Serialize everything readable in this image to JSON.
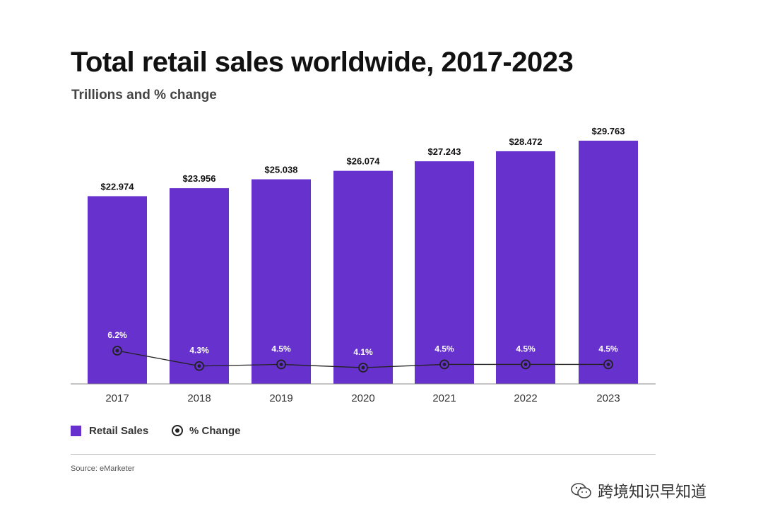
{
  "title": "Total retail sales worldwide, 2017-2023",
  "subtitle": "Trillions and % change",
  "legend": {
    "bars": "Retail Sales",
    "line": "% Change"
  },
  "source": "Source: eMarketer",
  "watermark": "跨境知识早知道",
  "colors": {
    "bar": "#6631cc",
    "line": "#222222",
    "axis": "#888888"
  },
  "chart_data": {
    "type": "bar",
    "title": "Total retail sales worldwide, 2017-2023",
    "subtitle": "Trillions and % change",
    "categories": [
      "2017",
      "2018",
      "2019",
      "2020",
      "2021",
      "2022",
      "2023"
    ],
    "series": [
      {
        "name": "Retail Sales",
        "type": "bar",
        "values": [
          22.974,
          23.956,
          25.038,
          26.074,
          27.243,
          28.472,
          29.763
        ],
        "labels": [
          "$22.974",
          "$23.956",
          "$25.038",
          "$26.074",
          "$27.243",
          "$28.472",
          "$29.763"
        ]
      },
      {
        "name": "% Change",
        "type": "line",
        "values": [
          6.2,
          4.3,
          4.5,
          4.1,
          4.5,
          4.5,
          4.5
        ],
        "labels": [
          "6.2%",
          "4.3%",
          "4.5%",
          "4.1%",
          "4.5%",
          "4.5%",
          "4.5%"
        ]
      }
    ],
    "bar_axis_range": [
      0,
      29.763
    ],
    "line_axis_range": [
      0,
      6.2
    ],
    "grid": false,
    "legend_position": "bottom-left"
  }
}
